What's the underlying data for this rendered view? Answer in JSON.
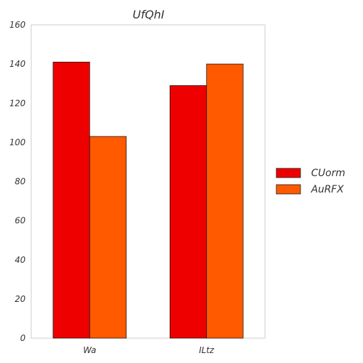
{
  "chart_data": {
    "type": "bar",
    "title": "UfQhI",
    "xlabel": "",
    "ylabel": "",
    "categories": [
      "Wa",
      "ILtz"
    ],
    "series": [
      {
        "name": "CUorm",
        "values": [
          141,
          129
        ],
        "color": "#ee0000"
      },
      {
        "name": "AuRFX",
        "values": [
          103,
          140
        ],
        "color": "#ff5a00"
      }
    ],
    "ylim": [
      0,
      160
    ],
    "yticks": [
      0,
      20,
      40,
      60,
      80,
      100,
      120,
      140,
      160
    ],
    "grid": false,
    "legend_position": "right"
  }
}
